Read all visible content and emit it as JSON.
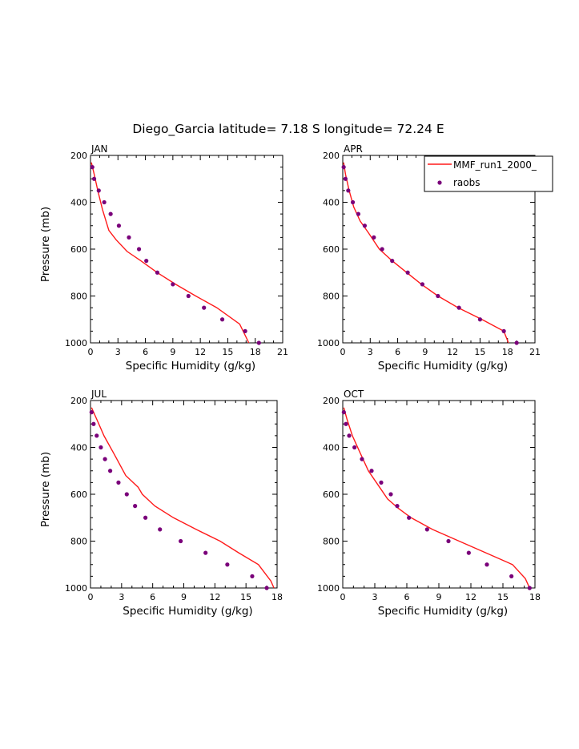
{
  "figure": {
    "title": "Diego_Garcia  latitude= 7.18 S longitude= 72.24 E"
  },
  "legend": {
    "model_label": "MMF_run1_2000_",
    "obs_label": "raobs",
    "placement": "top-right of APR panel"
  },
  "colors": {
    "model_line": "#ff1a1a",
    "obs_marker": "#7a007a",
    "axes": "#000000"
  },
  "chart_data": [
    {
      "type": "line",
      "panel_title": "JAN",
      "xlabel": "Specific Humidity (g/kg)",
      "ylabel": "Pressure (mb)",
      "xlim": [
        0,
        21
      ],
      "ylim": [
        1000,
        200
      ],
      "xticks": [
        0,
        3,
        6,
        9,
        12,
        15,
        18,
        21
      ],
      "yticks": [
        200,
        400,
        600,
        800,
        1000
      ],
      "series": [
        {
          "name": "MMF_run1_2000_",
          "kind": "line",
          "x": [
            0.1,
            0.4,
            0.8,
            1.3,
            2.0,
            2.8,
            4.0,
            5.5,
            7.3,
            9.3,
            11.5,
            13.8,
            16.3,
            17.3
          ],
          "y": [
            230,
            280,
            350,
            430,
            520,
            560,
            610,
            650,
            700,
            750,
            800,
            850,
            920,
            1000
          ]
        },
        {
          "name": "raobs",
          "kind": "scatter",
          "x": [
            0.2,
            0.4,
            0.9,
            1.5,
            2.2,
            3.1,
            4.2,
            5.3,
            6.1,
            7.3,
            9.0,
            10.7,
            12.4,
            14.4,
            16.9,
            18.4
          ],
          "y": [
            250,
            300,
            350,
            400,
            450,
            500,
            550,
            600,
            650,
            700,
            750,
            800,
            850,
            900,
            950,
            1000
          ]
        }
      ]
    },
    {
      "type": "line",
      "panel_title": "APR",
      "xlabel": "Specific Humidity (g/kg)",
      "ylabel": "",
      "xlim": [
        0,
        21
      ],
      "ylim": [
        1000,
        200
      ],
      "xticks": [
        0,
        3,
        6,
        9,
        12,
        15,
        18,
        21
      ],
      "yticks": [
        200,
        400,
        600,
        800,
        1000
      ],
      "series": [
        {
          "name": "MMF_run1_2000_",
          "kind": "line",
          "x": [
            0.1,
            0.3,
            0.7,
            1.2,
            1.9,
            2.8,
            4.0,
            5.4,
            7.0,
            8.6,
            10.4,
            12.6,
            15.2,
            17.6,
            18.1
          ],
          "y": [
            230,
            280,
            350,
            420,
            480,
            530,
            600,
            650,
            700,
            750,
            800,
            850,
            900,
            950,
            1000
          ]
        },
        {
          "name": "raobs",
          "kind": "scatter",
          "x": [
            0.1,
            0.3,
            0.6,
            1.1,
            1.7,
            2.4,
            3.4,
            4.3,
            5.4,
            7.1,
            8.7,
            10.4,
            12.7,
            15.0,
            17.6,
            19.0
          ],
          "y": [
            250,
            300,
            350,
            400,
            450,
            500,
            550,
            600,
            650,
            700,
            750,
            800,
            850,
            900,
            950,
            1000
          ]
        }
      ]
    },
    {
      "type": "line",
      "panel_title": "JUL",
      "xlabel": "Specific Humidity (g/kg)",
      "ylabel": "Pressure (mb)",
      "xlim": [
        0,
        18
      ],
      "ylim": [
        1000,
        200
      ],
      "xticks": [
        0,
        3,
        6,
        9,
        12,
        15,
        18
      ],
      "yticks": [
        200,
        400,
        600,
        800,
        1000
      ],
      "series": [
        {
          "name": "MMF_run1_2000_",
          "kind": "line",
          "x": [
            0.1,
            0.6,
            1.3,
            2.3,
            3.4,
            4.6,
            5.0,
            6.2,
            8.0,
            10.2,
            12.5,
            14.3,
            16.2,
            17.4,
            17.7
          ],
          "y": [
            230,
            280,
            350,
            430,
            520,
            570,
            600,
            650,
            700,
            750,
            800,
            850,
            900,
            970,
            1000
          ]
        },
        {
          "name": "raobs",
          "kind": "scatter",
          "x": [
            0.1,
            0.3,
            0.6,
            1.0,
            1.4,
            1.9,
            2.7,
            3.5,
            4.3,
            5.3,
            6.7,
            8.7,
            11.1,
            13.2,
            15.6,
            17.0
          ],
          "y": [
            250,
            300,
            350,
            400,
            450,
            500,
            550,
            600,
            650,
            700,
            750,
            800,
            850,
            900,
            950,
            1000
          ]
        }
      ]
    },
    {
      "type": "line",
      "panel_title": "OCT",
      "xlabel": "Specific Humidity (g/kg)",
      "ylabel": "",
      "xlim": [
        0,
        18
      ],
      "ylim": [
        1000,
        200
      ],
      "xticks": [
        0,
        3,
        6,
        9,
        12,
        15,
        18
      ],
      "yticks": [
        200,
        400,
        600,
        800,
        1000
      ],
      "series": [
        {
          "name": "MMF_run1_2000_",
          "kind": "line",
          "x": [
            0.1,
            0.4,
            0.9,
            1.6,
            2.4,
            3.3,
            4.2,
            5.2,
            6.4,
            8.4,
            10.9,
            13.4,
            15.9,
            17.1,
            17.5
          ],
          "y": [
            230,
            280,
            350,
            420,
            500,
            560,
            620,
            660,
            700,
            750,
            800,
            850,
            900,
            960,
            1000
          ]
        },
        {
          "name": "raobs",
          "kind": "scatter",
          "x": [
            0.1,
            0.3,
            0.6,
            1.1,
            1.8,
            2.7,
            3.6,
            4.5,
            5.1,
            6.2,
            7.9,
            9.9,
            11.8,
            13.5,
            15.8,
            17.5
          ],
          "y": [
            250,
            300,
            350,
            400,
            450,
            500,
            550,
            600,
            650,
            700,
            750,
            800,
            850,
            900,
            950,
            1000
          ]
        }
      ]
    }
  ]
}
